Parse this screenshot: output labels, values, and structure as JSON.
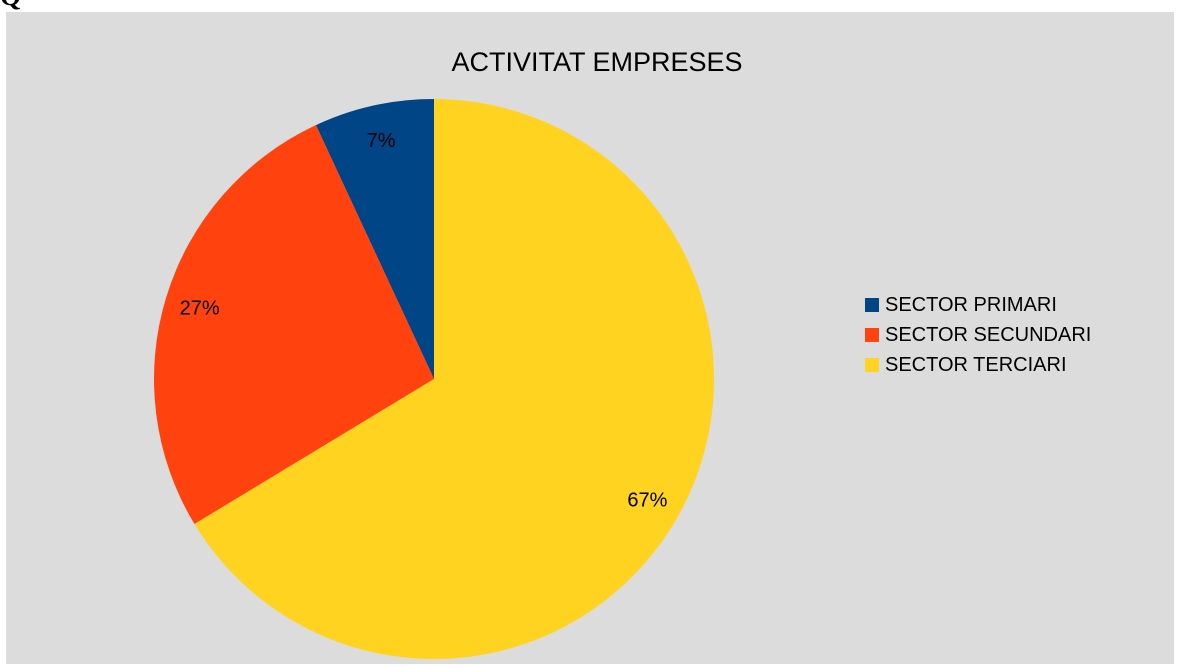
{
  "page": {
    "cut_heading": "Q"
  },
  "chart_data": {
    "type": "pie",
    "title": "ACTIVITAT EMPRESES",
    "categories": [
      "SECTOR PRIMARI",
      "SECTOR SECUNDARI",
      "SECTOR TERCIARI"
    ],
    "values": [
      7,
      27,
      67
    ],
    "labels": [
      "7%",
      "27%",
      "67%"
    ],
    "colors": [
      "#004586",
      "#ff420e",
      "#ffd320"
    ],
    "legend_position": "right"
  }
}
